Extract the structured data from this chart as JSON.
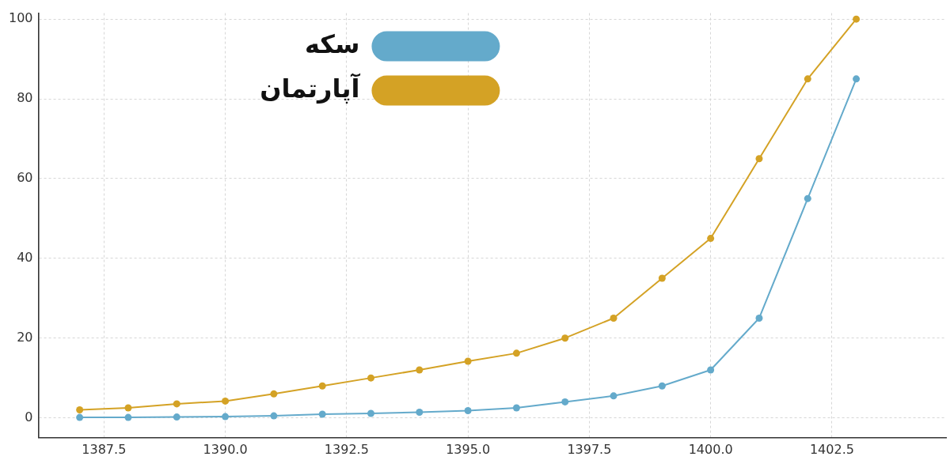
{
  "chart_data": {
    "type": "line",
    "x": [
      1387,
      1388,
      1389,
      1390,
      1391,
      1392,
      1393,
      1394,
      1395,
      1396,
      1397,
      1398,
      1399,
      1400,
      1401,
      1402,
      1403
    ],
    "series": [
      {
        "name": "سکه",
        "color": "#64aacb",
        "values": [
          0.1,
          0.1,
          0.2,
          0.3,
          0.5,
          0.9,
          1.1,
          1.4,
          1.8,
          2.5,
          4,
          5.5,
          8,
          12,
          25,
          55,
          85
        ]
      },
      {
        "name": "آپارتمان",
        "color": "#d4a225",
        "values": [
          2,
          2.5,
          3.5,
          4.2,
          6,
          8,
          10,
          12,
          14.2,
          16.2,
          20,
          25,
          35,
          45,
          65,
          85,
          100
        ]
      }
    ],
    "xlim": [
      1386.15,
      1404.85
    ],
    "xticks": [
      1387.5,
      {
        "value": 1390,
        "label": "1390.0"
      },
      1392.5,
      {
        "value": 1395,
        "label": "1395.0"
      },
      1397.5,
      {
        "value": 1400,
        "label": "1400.0"
      },
      1402.5
    ],
    "ylim": [
      -5,
      101.5
    ],
    "yticks": [
      0,
      20,
      40,
      60,
      80,
      100
    ],
    "grid": true,
    "legend": "top",
    "marker": "circle"
  }
}
